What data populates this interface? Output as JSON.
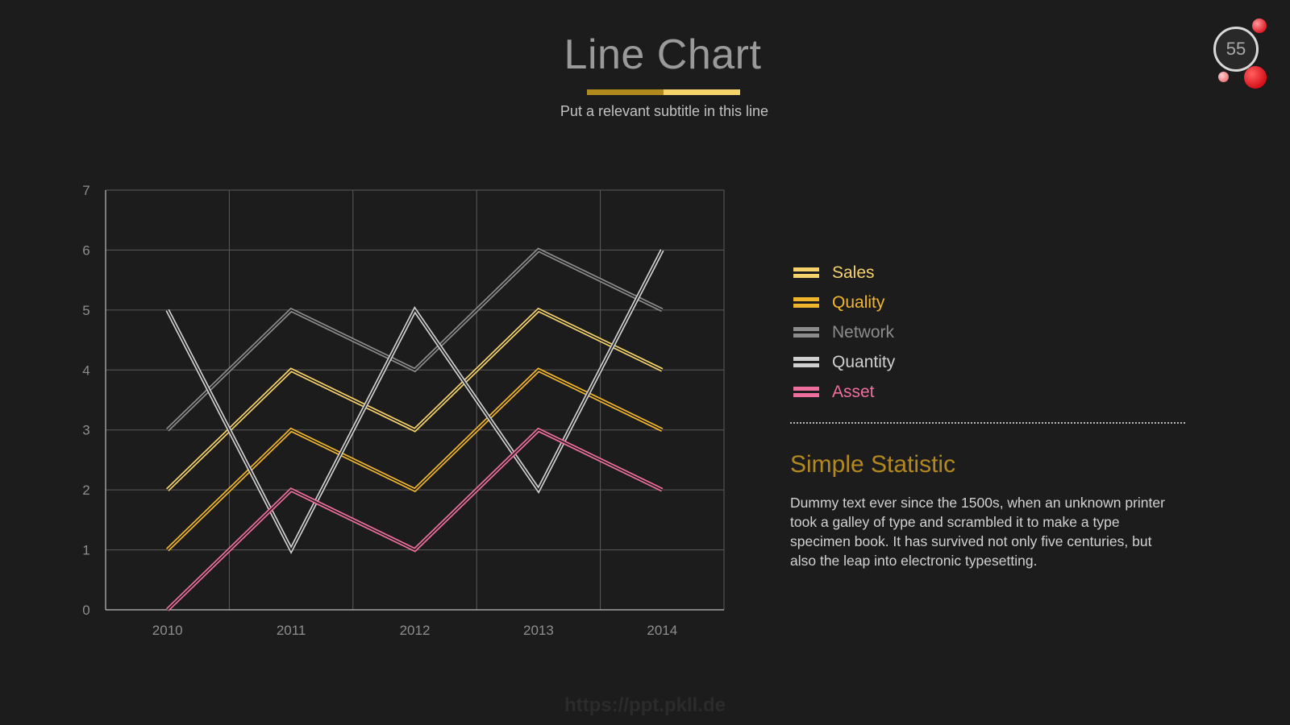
{
  "header": {
    "title": "Line Chart",
    "subtitle": "Put a relevant subtitle in this line",
    "page_number": "55"
  },
  "chart_data": {
    "type": "line",
    "categories": [
      "2010",
      "2011",
      "2012",
      "2013",
      "2014"
    ],
    "ylim": [
      0,
      7
    ],
    "yticks": [
      0,
      1,
      2,
      3,
      4,
      5,
      6,
      7
    ],
    "grid": true,
    "legend_position": "right",
    "series": [
      {
        "name": "Sales",
        "values": [
          2,
          4,
          3,
          5,
          4
        ],
        "color": "#f5d26a"
      },
      {
        "name": "Quality",
        "values": [
          1,
          3,
          2,
          4,
          3
        ],
        "color": "#f2b62c"
      },
      {
        "name": "Network",
        "values": [
          3,
          5,
          4,
          6,
          5
        ],
        "color": "#8c8c8c"
      },
      {
        "name": "Quantity",
        "values": [
          5,
          1,
          5,
          2,
          6
        ],
        "color": "#cfcfcf"
      },
      {
        "name": "Asset",
        "values": [
          0,
          2,
          1,
          3,
          2
        ],
        "color": "#ee6f9e"
      }
    ]
  },
  "statistic": {
    "title": "Simple Statistic",
    "text": "Dummy text ever since the 1500s, when an unknown printer took a galley of type and scrambled it to make a type specimen book. It has survived not only five centuries, but also the leap into electronic typesetting."
  },
  "footer": {
    "watermark": "https://ppt.pkll.de"
  },
  "colors": {
    "background": "#1d1c1d",
    "accent_dark_gold": "#b08a1c",
    "accent_light_gold": "#f5d26a",
    "badge_red": "#e01e2a"
  }
}
